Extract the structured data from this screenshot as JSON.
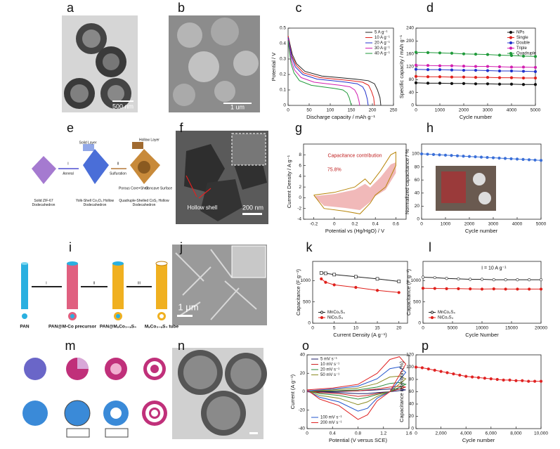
{
  "panel_labels": [
    "a",
    "b",
    "c",
    "d",
    "e",
    "f",
    "g",
    "h",
    "i",
    "j",
    "k",
    "l",
    "m",
    "n",
    "o",
    "p"
  ],
  "images": {
    "scale_a": "500 nm",
    "scale_b": "1 um",
    "scale_f": "200 nm",
    "shell_f": "Hollow shell",
    "scale_j": "1 μm"
  },
  "diagram_e": [
    "Solid Layer",
    "Hollow Layer",
    "I",
    "Anneal",
    "II",
    "Sulfuration",
    "Porous Core+Shell",
    "Concave Surface",
    "Solid ZIF-67 Dodecahedron",
    "Yolk-Shell Co₃O₄ Hollow Dodecahedron",
    "Quadruple-Shelled CoS₂ Hollow Dodecahedron"
  ],
  "diagram_i": [
    "I",
    "II",
    "III",
    "PAN",
    "PAN@M-Co precursor",
    "PAN@MₓCo₃₋ₓS₄",
    "MₓCo₃₋ₓS₄ tube"
  ],
  "chart_data": [
    {
      "type": "line",
      "xlabel": "Discharge capacity / mAh g⁻¹",
      "ylabel": "Potential / V",
      "xlim": [
        0,
        250
      ],
      "xticks": [
        0,
        50,
        100,
        150,
        200,
        250
      ],
      "ylim": [
        0,
        0.5
      ],
      "yticks": [
        0,
        0.1,
        0.2,
        0.3,
        0.4,
        0.5
      ],
      "legend": "upper right",
      "series": [
        {
          "name": "5 A g⁻¹",
          "color": "#222222",
          "x": [
            0,
            10,
            20,
            40,
            80,
            120,
            160,
            190,
            205,
            212,
            218,
            220
          ],
          "values": [
            0.45,
            0.33,
            0.27,
            0.22,
            0.19,
            0.18,
            0.17,
            0.16,
            0.14,
            0.1,
            0.05,
            0
          ]
        },
        {
          "name": "10 A g⁻¹",
          "color": "#e0201b",
          "x": [
            0,
            9,
            19,
            37,
            75,
            112,
            149,
            177,
            191,
            198,
            203,
            205
          ],
          "values": [
            0.45,
            0.32,
            0.26,
            0.21,
            0.18,
            0.17,
            0.16,
            0.15,
            0.13,
            0.09,
            0.05,
            0
          ]
        },
        {
          "name": "20 A g⁻¹",
          "color": "#2233cc",
          "x": [
            0,
            9,
            17,
            35,
            69,
            104,
            138,
            164,
            177,
            183,
            188,
            190
          ],
          "values": [
            0.44,
            0.31,
            0.25,
            0.2,
            0.17,
            0.16,
            0.15,
            0.14,
            0.12,
            0.09,
            0.04,
            0
          ]
        },
        {
          "name": "30 A g⁻¹",
          "color": "#d21fb0",
          "x": [
            0,
            8,
            15,
            31,
            62,
            93,
            124,
            147,
            158,
            164,
            168,
            170
          ],
          "values": [
            0.43,
            0.29,
            0.23,
            0.18,
            0.15,
            0.14,
            0.13,
            0.12,
            0.1,
            0.07,
            0.03,
            0
          ]
        },
        {
          "name": "40 A g⁻¹",
          "color": "#1f9a3a",
          "x": [
            0,
            7,
            14,
            27,
            55,
            82,
            109,
            130,
            140,
            145,
            148,
            150
          ],
          "values": [
            0.42,
            0.27,
            0.21,
            0.16,
            0.13,
            0.12,
            0.11,
            0.1,
            0.08,
            0.05,
            0.02,
            0
          ]
        }
      ]
    },
    {
      "type": "line",
      "xlabel": "Cycle number",
      "ylabel": "Specific capacity / mAh g⁻¹",
      "xlim": [
        0,
        5000
      ],
      "xticks": [
        0,
        1000,
        2000,
        3000,
        4000,
        5000
      ],
      "ylim": [
        0,
        240
      ],
      "yticks": [
        0,
        40,
        80,
        120,
        160,
        200,
        240
      ],
      "legend": "upper right",
      "marker": "circle",
      "x": [
        0,
        500,
        1000,
        1500,
        2000,
        2500,
        3000,
        3500,
        4000,
        4500,
        5000
      ],
      "series": [
        {
          "name": "NPs",
          "color": "#111111",
          "values": [
            70,
            69,
            69,
            68,
            68,
            67,
            67,
            66,
            66,
            65,
            65
          ]
        },
        {
          "name": "Single",
          "color": "#e0201b",
          "values": [
            90,
            89,
            89,
            88,
            88,
            87,
            87,
            86,
            86,
            85,
            85
          ]
        },
        {
          "name": "Double",
          "color": "#2233cc",
          "values": [
            112,
            111,
            111,
            110,
            109,
            109,
            108,
            107,
            107,
            106,
            105
          ]
        },
        {
          "name": "Triple",
          "color": "#d21fb0",
          "values": [
            125,
            124,
            123,
            123,
            122,
            121,
            121,
            120,
            119,
            119,
            118
          ]
        },
        {
          "name": "Quadruple",
          "color": "#1f9a3a",
          "values": [
            165,
            164,
            163,
            162,
            160,
            159,
            158,
            156,
            155,
            153,
            152
          ]
        }
      ]
    },
    {
      "type": "line",
      "xlabel": "Potential vs (Hg/HgO) / V",
      "ylabel": "Current Density / A g⁻¹",
      "xlim": [
        -0.3,
        0.7
      ],
      "xticks": [
        -0.2,
        0,
        0.2,
        0.4,
        0.6
      ],
      "ylim": [
        -4,
        10
      ],
      "yticks": [
        -4,
        -2,
        0,
        2,
        4,
        6,
        8
      ],
      "annotations": [
        "Capacitance contribution",
        "75.8%"
      ],
      "x": [
        -0.2,
        0,
        0.2,
        0.3,
        0.35,
        0.45,
        0.55,
        0.6,
        0.6,
        0.5,
        0.4,
        0.35,
        0.25,
        0.1,
        -0.1,
        -0.2
      ],
      "series": [
        {
          "color": "#e88a8a",
          "fill": true,
          "values": [
            0.3,
            0.7,
            1.5,
            2.6,
            1.9,
            3.8,
            6.2,
            6.6,
            4.6,
            1.5,
            0.3,
            -0.8,
            -2.3,
            -1.9,
            -1.5,
            0.3
          ]
        },
        {
          "color": "#b8860b",
          "values": [
            0.5,
            1,
            2,
            3.5,
            2.5,
            5,
            8,
            8.5,
            6,
            2,
            0.5,
            -1,
            -3,
            -2.5,
            -2,
            0.5
          ]
        }
      ]
    },
    {
      "type": "line",
      "xlabel": "Cycle number",
      "ylabel": "Normalized capacitance / %",
      "xlim": [
        0,
        5000
      ],
      "xticks": [
        0,
        1000,
        2000,
        3000,
        4000,
        5000
      ],
      "ylim": [
        0,
        115
      ],
      "yticks": [
        0,
        20,
        40,
        60,
        80,
        100
      ],
      "marker": "circle",
      "x": [
        0,
        250,
        500,
        750,
        1000,
        1250,
        1500,
        1750,
        2000,
        2250,
        2500,
        2750,
        3000,
        3250,
        3500,
        3750,
        4000,
        4250,
        4500,
        4750,
        5000
      ],
      "series": [
        {
          "color": "#3a6fd8",
          "values": [
            100,
            99.5,
            99,
            98.5,
            98,
            97.5,
            97,
            96.5,
            96,
            95.5,
            95,
            94.5,
            94,
            93.5,
            93,
            92.5,
            92,
            91.5,
            91,
            90.5,
            90
          ]
        }
      ]
    },
    {
      "type": "line",
      "xlabel": "Current Density (A g⁻¹)",
      "ylabel": "Capacitance (F g⁻¹)",
      "xlim": [
        0,
        22
      ],
      "xticks": [
        0,
        5,
        10,
        15,
        20
      ],
      "ylim": [
        0,
        1450
      ],
      "yticks": [
        0,
        500,
        1000
      ],
      "legend": "lower left",
      "x": [
        2,
        3,
        5,
        10,
        15,
        20
      ],
      "series": [
        {
          "name": "MnCo₂S₄",
          "color": "#222222",
          "marker": "square-open",
          "values": [
            1180,
            1170,
            1140,
            1090,
            1040,
            980
          ]
        },
        {
          "name": "NiCo₂S₄",
          "color": "#e0201b",
          "marker": "circle",
          "values": [
            1040,
            960,
            900,
            840,
            770,
            720
          ]
        }
      ]
    },
    {
      "type": "line",
      "xlabel": "Cycle Number",
      "ylabel": "Capacitance (F g⁻¹)",
      "xlim": [
        0,
        20000
      ],
      "xticks": [
        0,
        5000,
        10000,
        15000,
        20000
      ],
      "ylim": [
        0,
        1450
      ],
      "yticks": [
        0,
        500,
        1000
      ],
      "legend": "lower left",
      "annotations": [
        "I = 10 A g⁻¹"
      ],
      "x": [
        0,
        2000,
        4000,
        6000,
        8000,
        10000,
        12000,
        14000,
        16000,
        18000,
        20000
      ],
      "series": [
        {
          "name": "MnCo₂S₄",
          "color": "#222222",
          "marker": "circle-open",
          "values": [
            1080,
            1070,
            1050,
            1040,
            1030,
            1030,
            1020,
            1020,
            1020,
            1020,
            1020
          ]
        },
        {
          "name": "NiCo₂S₄",
          "color": "#e0201b",
          "marker": "circle",
          "values": [
            820,
            815,
            810,
            810,
            805,
            800,
            805,
            800,
            800,
            800,
            800
          ]
        }
      ]
    },
    {
      "type": "line",
      "xlabel": "Potential (V versus SCE)",
      "ylabel": "Current (A g⁻¹)",
      "xlim": [
        0,
        1.6
      ],
      "xticks": [
        0,
        0.4,
        0.8,
        1.2,
        1.6
      ],
      "ylim": [
        -40,
        40
      ],
      "yticks": [
        -40,
        -20,
        0,
        20,
        40
      ],
      "legend": "left",
      "x": [
        0,
        0.4,
        0.8,
        1.1,
        1.3,
        1.45,
        1.55,
        1.3,
        1.1,
        0.95,
        0.8,
        0.5,
        0.2,
        0
      ],
      "series": [
        {
          "name": "5 mV s⁻¹",
          "color": "#1a1a66",
          "values": [
            0,
            0,
            1,
            2,
            3,
            3,
            2,
            0,
            -1,
            -2,
            -2,
            -1,
            -1,
            0
          ]
        },
        {
          "name": "10 mV s⁻¹",
          "color": "#cc2222",
          "values": [
            0,
            1,
            1,
            3,
            5,
            6,
            5,
            0,
            -2,
            -4,
            -5,
            -2,
            -1,
            0
          ]
        },
        {
          "name": "20 mV s⁻¹",
          "color": "#2a8a3a",
          "values": [
            1,
            1,
            2,
            5,
            9,
            10,
            8,
            0,
            -3,
            -6,
            -8,
            -4,
            -2,
            1
          ]
        },
        {
          "name": "50 mV s⁻¹",
          "color": "#8a8a20",
          "values": [
            1,
            2,
            4,
            9,
            16,
            17,
            14,
            0,
            -5,
            -11,
            -14,
            -7,
            -4,
            1
          ]
        },
        {
          "name": "100 mV s⁻¹",
          "color": "#2255cc",
          "values": [
            1,
            3,
            6,
            14,
            25,
            27,
            21,
            0,
            -7,
            -18,
            -21,
            -11,
            -6,
            1
          ]
        },
        {
          "name": "200 mV s⁻¹",
          "color": "#e02222",
          "values": [
            2,
            4,
            8,
            20,
            35,
            38,
            30,
            0,
            -10,
            -25,
            -30,
            -15,
            -8,
            2
          ]
        }
      ]
    },
    {
      "type": "line",
      "xlabel": "Cycle number",
      "ylabel": "Capacitance retention (%)",
      "xlim": [
        0,
        10000
      ],
      "xticks": [
        0,
        {
          "value": 2000,
          "label": "2,000"
        },
        {
          "value": 4000,
          "label": "4,000"
        },
        {
          "value": 6000,
          "label": "6,000"
        },
        {
          "value": 8000,
          "label": "8,000"
        },
        {
          "value": 10000,
          "label": "10,000"
        }
      ],
      "ylim": [
        0,
        120
      ],
      "yticks": [
        0,
        20,
        40,
        60,
        80,
        100,
        120
      ],
      "marker": "circle",
      "x": [
        0,
        500,
        1000,
        1500,
        2000,
        2500,
        3000,
        3500,
        4000,
        4500,
        5000,
        5500,
        6000,
        6500,
        7000,
        7500,
        8000,
        8500,
        9000,
        9500,
        10000
      ],
      "series": [
        {
          "color": "#e02222",
          "values": [
            100,
            99,
            97,
            95,
            93,
            91,
            89,
            87,
            85,
            84,
            83,
            82,
            81,
            80,
            79,
            79,
            78,
            78,
            77,
            77,
            77
          ]
        }
      ]
    }
  ]
}
